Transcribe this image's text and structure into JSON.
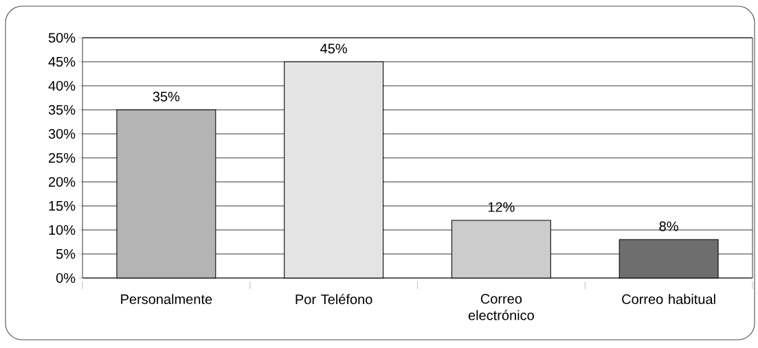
{
  "chart_data": {
    "type": "bar",
    "categories": [
      "Personalmente",
      "Por Teléfono",
      "Correo electrónico",
      "Correo habitual"
    ],
    "values": [
      35,
      45,
      12,
      8
    ],
    "colors": [
      "#b4b4b4",
      "#e4e4e4",
      "#cccccc",
      "#6e6e6e"
    ],
    "value_labels": [
      "35%",
      "45%",
      "12%",
      "8%"
    ],
    "ylim": [
      0,
      50
    ],
    "yticks": [
      {
        "value": 0,
        "label": "0%"
      },
      {
        "value": 5,
        "label": "5%"
      },
      {
        "value": 10,
        "label": "10%"
      },
      {
        "value": 15,
        "label": "15%"
      },
      {
        "value": 20,
        "label": "20%"
      },
      {
        "value": 25,
        "label": "25%"
      },
      {
        "value": 30,
        "label": "30%"
      },
      {
        "value": 35,
        "label": "35%"
      },
      {
        "value": 40,
        "label": "40%"
      },
      {
        "value": 45,
        "label": "45%"
      },
      {
        "value": 50,
        "label": "50%"
      }
    ],
    "grid": "y"
  }
}
